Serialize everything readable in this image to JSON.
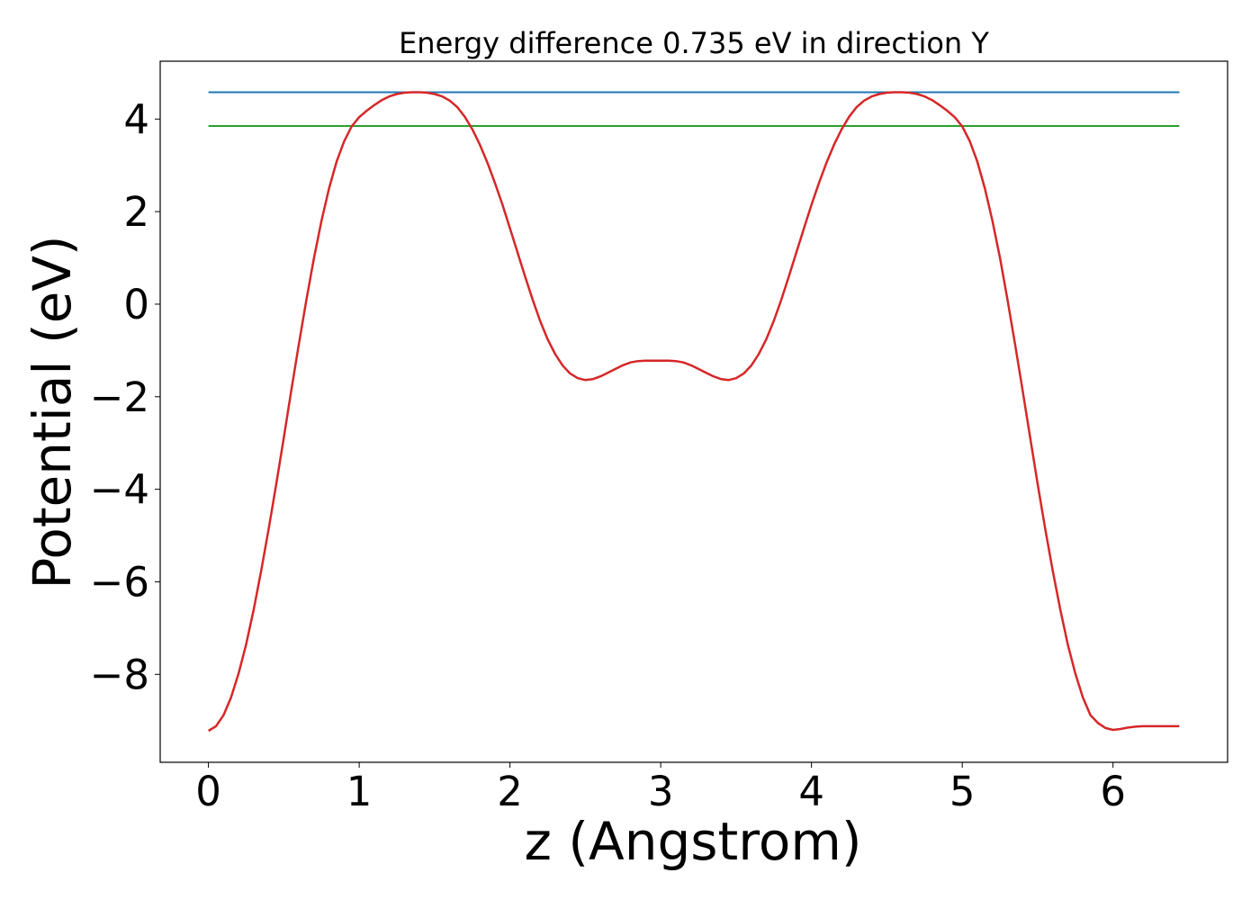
{
  "chart_data": {
    "type": "line",
    "title": "Energy difference 0.735 eV in direction Y",
    "xlabel": "z (Angstrom)",
    "ylabel": "Potential (eV)",
    "xlim": [
      -0.32,
      6.76
    ],
    "ylim": [
      -9.9,
      5.25
    ],
    "xticks": [
      0,
      1,
      2,
      3,
      4,
      5,
      6
    ],
    "xtick_labels": [
      "0",
      "1",
      "2",
      "3",
      "4",
      "5",
      "6"
    ],
    "yticks": [
      4,
      2,
      0,
      -2,
      -4,
      -6,
      -8
    ],
    "ytick_labels": [
      "4",
      "2",
      "0",
      "−2",
      "−4",
      "−6",
      "−8"
    ],
    "grid": false,
    "series": [
      {
        "color": "#d62728",
        "x": [
          0.0,
          0.05,
          0.1,
          0.15,
          0.2,
          0.25,
          0.3,
          0.35,
          0.4,
          0.45,
          0.5,
          0.55,
          0.6,
          0.65,
          0.7,
          0.75,
          0.8,
          0.85,
          0.9,
          0.95,
          1.0,
          1.05,
          1.1,
          1.15,
          1.2,
          1.25,
          1.3,
          1.35,
          1.4,
          1.45,
          1.5,
          1.55,
          1.6,
          1.65,
          1.7,
          1.75,
          1.8,
          1.85,
          1.9,
          1.95,
          2.0,
          2.05,
          2.1,
          2.15,
          2.2,
          2.25,
          2.3,
          2.35,
          2.4,
          2.45,
          2.5,
          2.55,
          2.6,
          2.65,
          2.7,
          2.75,
          2.8,
          2.85,
          2.9,
          2.95,
          3.0,
          3.05,
          3.1,
          3.15,
          3.2,
          3.25,
          3.3,
          3.35,
          3.4,
          3.45,
          3.5,
          3.55,
          3.6,
          3.65,
          3.7,
          3.75,
          3.8,
          3.85,
          3.9,
          3.95,
          4.0,
          4.05,
          4.1,
          4.15,
          4.2,
          4.25,
          4.3,
          4.35,
          4.4,
          4.45,
          4.5,
          4.55,
          4.6,
          4.65,
          4.7,
          4.75,
          4.8,
          4.85,
          4.9,
          4.95,
          5.0,
          5.05,
          5.1,
          5.15,
          5.2,
          5.25,
          5.3,
          5.35,
          5.4,
          5.45,
          5.5,
          5.55,
          5.6,
          5.65,
          5.7,
          5.75,
          5.8,
          5.85,
          5.9,
          5.95,
          6.0,
          6.05,
          6.1,
          6.15,
          6.2,
          6.25,
          6.3,
          6.35,
          6.4,
          6.44
        ],
        "y": [
          -9.22,
          -9.12,
          -8.88,
          -8.5,
          -7.98,
          -7.35,
          -6.6,
          -5.76,
          -4.85,
          -3.88,
          -2.88,
          -1.86,
          -0.86,
          0.1,
          1.0,
          1.8,
          2.5,
          3.08,
          3.52,
          3.84,
          4.04,
          4.18,
          4.3,
          4.41,
          4.49,
          4.54,
          4.57,
          4.58,
          4.58,
          4.57,
          4.54,
          4.49,
          4.4,
          4.26,
          4.05,
          3.78,
          3.45,
          3.06,
          2.62,
          2.15,
          1.64,
          1.12,
          0.6,
          0.1,
          -0.36,
          -0.76,
          -1.08,
          -1.33,
          -1.5,
          -1.6,
          -1.64,
          -1.62,
          -1.56,
          -1.48,
          -1.4,
          -1.32,
          -1.26,
          -1.23,
          -1.22,
          -1.22,
          -1.22,
          -1.22,
          -1.23,
          -1.26,
          -1.32,
          -1.4,
          -1.48,
          -1.56,
          -1.62,
          -1.64,
          -1.6,
          -1.5,
          -1.33,
          -1.08,
          -0.76,
          -0.36,
          0.1,
          0.6,
          1.12,
          1.64,
          2.15,
          2.62,
          3.06,
          3.45,
          3.78,
          4.05,
          4.26,
          4.4,
          4.49,
          4.54,
          4.57,
          4.58,
          4.58,
          4.57,
          4.54,
          4.49,
          4.41,
          4.3,
          4.18,
          4.04,
          3.84,
          3.52,
          3.08,
          2.5,
          1.8,
          1.0,
          0.1,
          -0.86,
          -1.86,
          -2.88,
          -3.88,
          -4.85,
          -5.76,
          -6.6,
          -7.35,
          -7.98,
          -8.5,
          -8.88,
          -9.05,
          -9.16,
          -9.2,
          -9.18,
          -9.15,
          -9.13,
          -9.12,
          -9.12,
          -9.12,
          -9.12,
          -9.12,
          -9.12
        ]
      }
    ],
    "hlines": [
      {
        "y": 4.58,
        "xmin": 0.0,
        "xmax": 6.44,
        "color": "#1f77b4"
      },
      {
        "y": 3.85,
        "xmin": 0.0,
        "xmax": 6.44,
        "color": "#2ca02c"
      }
    ]
  }
}
